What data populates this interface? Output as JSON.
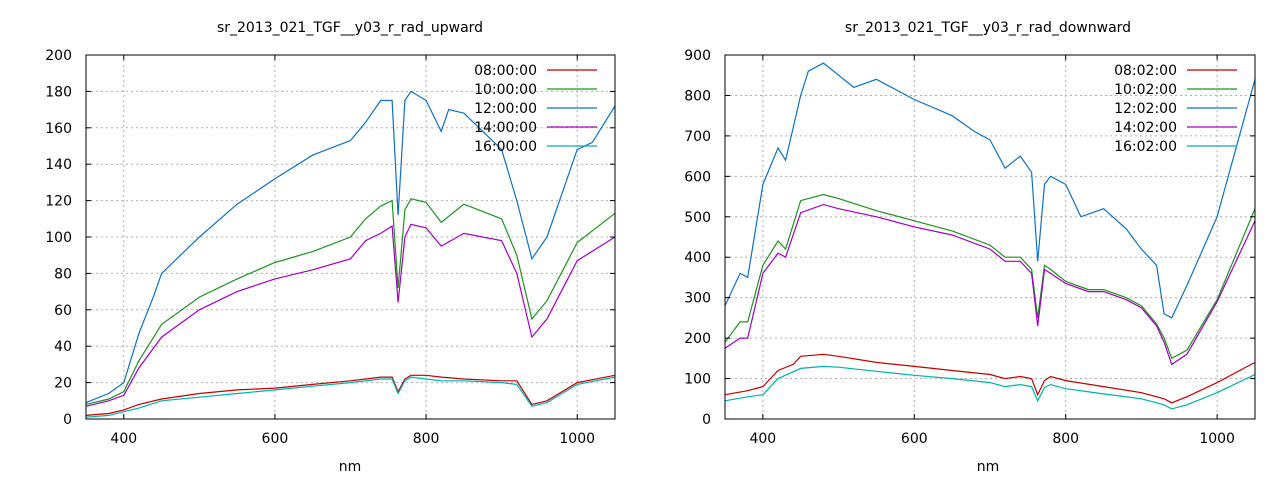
{
  "chart_data": [
    {
      "type": "line",
      "title": "sr_2013_021_TGF__y03_r_rad_upward",
      "xlabel": "nm",
      "ylabel": "",
      "xlim": [
        350,
        1050
      ],
      "ylim": [
        0,
        200
      ],
      "x_ticks": [
        400,
        600,
        800,
        1000
      ],
      "y_ticks": [
        0,
        20,
        40,
        60,
        80,
        100,
        120,
        140,
        160,
        180,
        200
      ],
      "grid": true,
      "legend_position": "top-right",
      "series": [
        {
          "name": "08:00:00",
          "color": "#c00000",
          "x": [
            350,
            380,
            400,
            420,
            450,
            500,
            550,
            600,
            650,
            700,
            720,
            740,
            755,
            763,
            772,
            780,
            800,
            820,
            850,
            900,
            920,
            940,
            960,
            1000,
            1050
          ],
          "y": [
            2,
            3,
            5,
            8,
            11,
            14,
            16,
            17,
            19,
            21,
            22,
            23,
            23,
            15,
            22,
            24,
            24,
            23,
            22,
            21,
            21,
            8,
            10,
            20,
            24
          ]
        },
        {
          "name": "10:00:00",
          "color": "#209020",
          "x": [
            350,
            380,
            400,
            420,
            450,
            500,
            550,
            600,
            650,
            700,
            720,
            740,
            755,
            763,
            772,
            780,
            800,
            820,
            850,
            900,
            920,
            940,
            960,
            1000,
            1050
          ],
          "y": [
            8,
            11,
            15,
            32,
            52,
            67,
            77,
            86,
            92,
            100,
            110,
            117,
            120,
            72,
            115,
            121,
            119,
            108,
            118,
            110,
            90,
            55,
            65,
            97,
            113
          ]
        },
        {
          "name": "12:00:00",
          "color": "#1070c0",
          "x": [
            350,
            380,
            400,
            420,
            440,
            450,
            500,
            550,
            600,
            650,
            700,
            720,
            740,
            755,
            763,
            772,
            780,
            800,
            820,
            830,
            850,
            900,
            920,
            940,
            960,
            1000,
            1020,
            1050
          ],
          "y": [
            9,
            14,
            20,
            47,
            68,
            80,
            100,
            118,
            132,
            145,
            153,
            163,
            175,
            175,
            112,
            175,
            180,
            175,
            158,
            170,
            168,
            148,
            120,
            88,
            100,
            148,
            152,
            172
          ]
        },
        {
          "name": "14:00:00",
          "color": "#a000c0",
          "x": [
            350,
            380,
            400,
            420,
            450,
            500,
            550,
            600,
            650,
            700,
            720,
            740,
            755,
            763,
            772,
            780,
            800,
            820,
            850,
            900,
            920,
            940,
            960,
            1000,
            1050
          ],
          "y": [
            7,
            10,
            13,
            28,
            45,
            60,
            70,
            77,
            82,
            88,
            98,
            102,
            106,
            64,
            100,
            107,
            105,
            95,
            102,
            98,
            80,
            45,
            55,
            87,
            100
          ]
        },
        {
          "name": "16:00:00",
          "color": "#00b0b0",
          "x": [
            350,
            380,
            400,
            420,
            450,
            500,
            550,
            600,
            650,
            700,
            720,
            740,
            755,
            763,
            772,
            780,
            800,
            820,
            850,
            900,
            920,
            940,
            960,
            1000,
            1050
          ],
          "y": [
            1,
            2,
            4,
            6,
            10,
            12,
            14,
            16,
            18,
            20,
            21,
            22,
            22,
            14,
            21,
            23,
            22,
            21,
            21,
            20,
            19,
            7,
            9,
            19,
            23
          ]
        }
      ]
    },
    {
      "type": "line",
      "title": "sr_2013_021_TGF__y03_r_rad_downward",
      "xlabel": "nm",
      "ylabel": "",
      "xlim": [
        350,
        1050
      ],
      "ylim": [
        0,
        900
      ],
      "x_ticks": [
        400,
        600,
        800,
        1000
      ],
      "y_ticks": [
        0,
        100,
        200,
        300,
        400,
        500,
        600,
        700,
        800,
        900
      ],
      "grid": true,
      "legend_position": "top-right",
      "series": [
        {
          "name": "08:02:00",
          "color": "#c00000",
          "x": [
            350,
            380,
            400,
            420,
            440,
            450,
            480,
            500,
            550,
            600,
            650,
            700,
            720,
            740,
            755,
            763,
            772,
            780,
            800,
            850,
            900,
            930,
            940,
            960,
            1000,
            1050
          ],
          "y": [
            60,
            70,
            80,
            120,
            135,
            155,
            160,
            155,
            140,
            130,
            120,
            110,
            100,
            105,
            100,
            60,
            95,
            105,
            95,
            80,
            65,
            50,
            40,
            55,
            90,
            140
          ]
        },
        {
          "name": "10:02:00",
          "color": "#209020",
          "x": [
            350,
            370,
            380,
            400,
            420,
            430,
            450,
            480,
            500,
            550,
            600,
            650,
            700,
            720,
            740,
            755,
            763,
            772,
            780,
            800,
            830,
            850,
            880,
            900,
            920,
            930,
            940,
            960,
            1000,
            1050
          ],
          "y": [
            190,
            240,
            240,
            380,
            440,
            420,
            540,
            555,
            545,
            515,
            490,
            465,
            430,
            400,
            400,
            370,
            250,
            380,
            370,
            340,
            320,
            320,
            300,
            280,
            235,
            200,
            150,
            170,
            295,
            520
          ]
        },
        {
          "name": "12:02:00",
          "color": "#1070c0",
          "x": [
            350,
            370,
            380,
            400,
            420,
            430,
            450,
            460,
            480,
            500,
            520,
            550,
            600,
            650,
            680,
            700,
            720,
            740,
            755,
            763,
            772,
            780,
            800,
            820,
            850,
            880,
            900,
            920,
            930,
            940,
            960,
            1000,
            1050
          ],
          "y": [
            280,
            360,
            350,
            580,
            670,
            640,
            800,
            860,
            880,
            850,
            820,
            840,
            790,
            750,
            710,
            690,
            620,
            650,
            610,
            390,
            580,
            600,
            580,
            500,
            520,
            470,
            420,
            380,
            260,
            250,
            330,
            500,
            840
          ]
        },
        {
          "name": "14:02:00",
          "color": "#a000c0",
          "x": [
            350,
            370,
            380,
            400,
            420,
            430,
            450,
            480,
            500,
            550,
            600,
            650,
            700,
            720,
            740,
            755,
            763,
            772,
            780,
            800,
            830,
            850,
            880,
            900,
            920,
            930,
            940,
            960,
            1000,
            1050
          ],
          "y": [
            175,
            200,
            200,
            360,
            410,
            400,
            510,
            530,
            520,
            500,
            475,
            455,
            420,
            390,
            390,
            360,
            230,
            370,
            360,
            335,
            315,
            315,
            295,
            275,
            230,
            190,
            135,
            160,
            290,
            490
          ]
        },
        {
          "name": "16:02:00",
          "color": "#00b0b0",
          "x": [
            350,
            380,
            400,
            420,
            450,
            480,
            500,
            550,
            600,
            650,
            700,
            720,
            740,
            755,
            763,
            772,
            780,
            800,
            850,
            900,
            930,
            940,
            960,
            1000,
            1050
          ],
          "y": [
            45,
            55,
            60,
            100,
            125,
            130,
            128,
            118,
            108,
            100,
            90,
            80,
            85,
            80,
            45,
            78,
            85,
            75,
            62,
            50,
            35,
            25,
            35,
            65,
            110
          ]
        }
      ]
    }
  ]
}
